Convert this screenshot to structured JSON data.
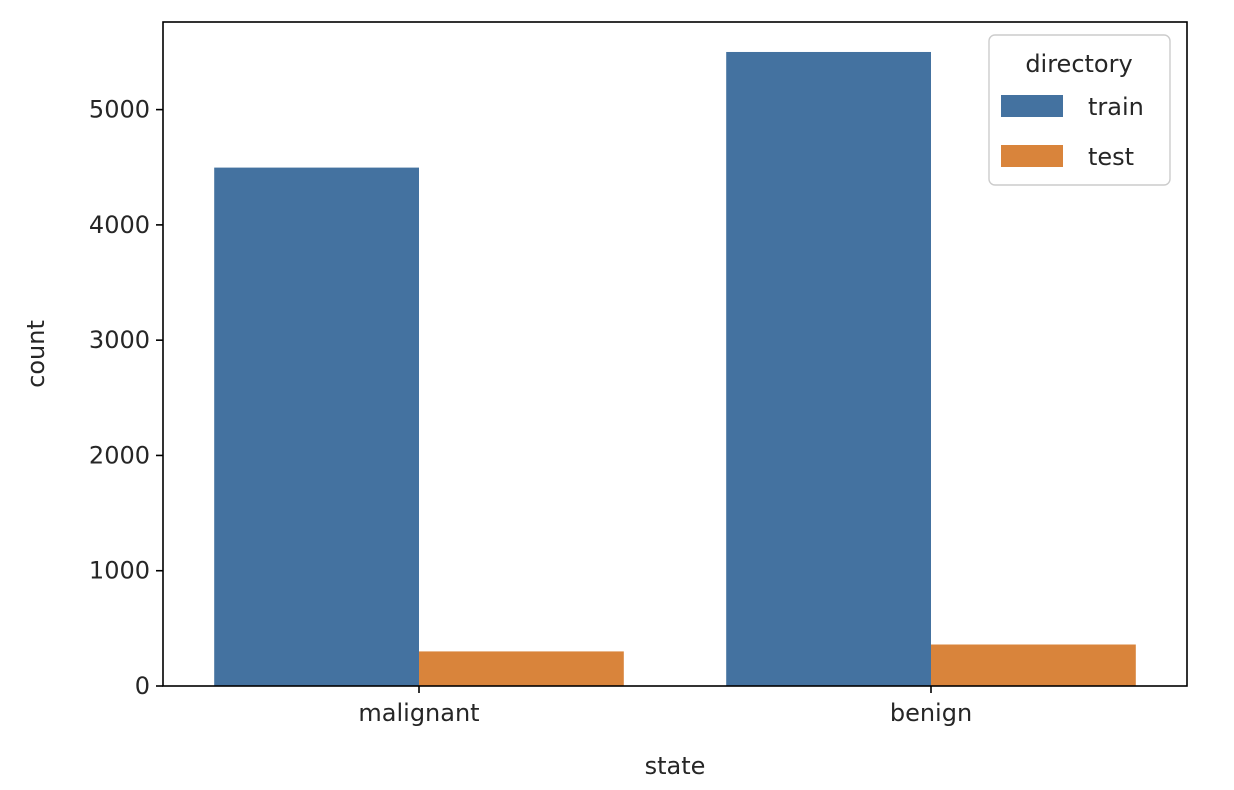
{
  "chart_data": {
    "type": "bar",
    "title": "",
    "xlabel": "state",
    "ylabel": "count",
    "categories": [
      "malignant",
      "benign"
    ],
    "series": [
      {
        "name": "train",
        "values": [
          4497,
          5500
        ]
      },
      {
        "name": "test",
        "values": [
          300,
          360
        ]
      }
    ],
    "ylim": [
      0,
      5760
    ],
    "yticks": [
      0,
      1000,
      2000,
      3000,
      4000,
      5000
    ],
    "grid": false,
    "legend": {
      "title": "directory",
      "placement": "top-right"
    },
    "colors": {
      "train": "#4472a0",
      "test": "#d9843b"
    }
  }
}
